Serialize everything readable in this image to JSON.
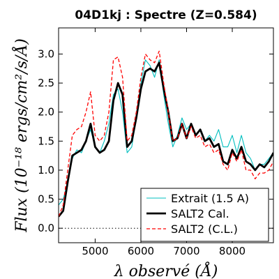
{
  "chart_data": {
    "type": "line",
    "title": "04D1kj : Spectre (Z=0.584)",
    "xlabel": "λ observé (Å)",
    "ylabel": "Flux (10⁻¹⁸ ergs/cm²/s/Å)",
    "xlim": [
      4200,
      8900
    ],
    "ylim": [
      -0.25,
      3.45
    ],
    "xticks": [
      5000,
      6000,
      7000,
      8000
    ],
    "yticks": [
      0.0,
      0.5,
      1.0,
      1.5,
      2.0,
      2.5,
      3.0
    ],
    "xtick_labels": [
      "5000",
      "6000",
      "7000",
      "8000"
    ],
    "ytick_labels": [
      "0.0",
      "0.5",
      "1.0",
      "1.5",
      "2.0",
      "2.5",
      "3.0"
    ],
    "legend_position": "lower-right",
    "series": [
      {
        "name": "Extrait (1.5 A)",
        "color": "#00bfbf",
        "style": "solid-thin",
        "x": [
          4200,
          4300,
          4400,
          4500,
          4600,
          4700,
          4800,
          4900,
          5000,
          5100,
          5200,
          5300,
          5400,
          5500,
          5600,
          5700,
          5800,
          5900,
          6000,
          6100,
          6200,
          6300,
          6400,
          6500,
          6600,
          6700,
          6800,
          6900,
          7000,
          7100,
          7200,
          7300,
          7400,
          7500,
          7600,
          7700,
          7800,
          7900,
          8000,
          8100,
          8200,
          8300,
          8400,
          8500,
          8600,
          8700,
          8800,
          8900
        ],
        "y": [
          0.4,
          0.5,
          0.8,
          1.2,
          1.35,
          1.3,
          1.5,
          1.7,
          1.4,
          1.3,
          1.5,
          1.8,
          2.3,
          2.4,
          2.0,
          1.3,
          1.4,
          1.9,
          2.5,
          2.9,
          2.8,
          2.6,
          2.9,
          2.3,
          1.8,
          1.4,
          1.6,
          1.9,
          1.7,
          1.8,
          1.6,
          1.7,
          1.5,
          1.6,
          1.5,
          1.7,
          1.4,
          1.4,
          1.6,
          1.3,
          1.6,
          1.3,
          1.2,
          1.0,
          1.1,
          1.1,
          1.2,
          1.3
        ]
      },
      {
        "name": "SALT2 Cal.",
        "color": "#000000",
        "style": "solid-thick",
        "x": [
          4200,
          4300,
          4400,
          4500,
          4600,
          4700,
          4800,
          4900,
          5000,
          5100,
          5200,
          5300,
          5400,
          5500,
          5600,
          5700,
          5800,
          5900,
          6000,
          6100,
          6200,
          6300,
          6400,
          6500,
          6600,
          6700,
          6800,
          6900,
          7000,
          7100,
          7200,
          7300,
          7400,
          7500,
          7600,
          7700,
          7800,
          7900,
          8000,
          8100,
          8200,
          8300,
          8400,
          8500,
          8600,
          8700,
          8800,
          8900
        ],
        "y": [
          0.2,
          0.3,
          0.8,
          1.25,
          1.3,
          1.35,
          1.5,
          1.8,
          1.4,
          1.3,
          1.35,
          1.5,
          2.2,
          2.5,
          2.3,
          1.4,
          1.5,
          1.9,
          2.4,
          2.7,
          2.75,
          2.7,
          2.85,
          2.4,
          2.0,
          1.5,
          1.55,
          1.8,
          1.55,
          1.8,
          1.6,
          1.7,
          1.5,
          1.55,
          1.4,
          1.45,
          1.15,
          1.1,
          1.35,
          1.2,
          1.4,
          1.15,
          1.1,
          1.0,
          1.1,
          1.05,
          1.15,
          1.3
        ]
      },
      {
        "name": "SALT2 (C.L.)",
        "color": "#ff0000",
        "style": "dashed",
        "x": [
          4200,
          4300,
          4400,
          4500,
          4600,
          4700,
          4800,
          4900,
          5000,
          5100,
          5200,
          5300,
          5400,
          5500,
          5600,
          5700,
          5800,
          5900,
          6000,
          6100,
          6200,
          6300,
          6400,
          6500,
          6600,
          6700,
          6800,
          6900,
          7000,
          7100,
          7200,
          7300,
          7400,
          7500,
          7600,
          7700,
          7800,
          7900,
          8000,
          8100,
          8200,
          8300,
          8400,
          8500,
          8600,
          8700,
          8800,
          8900
        ],
        "y": [
          0.2,
          0.4,
          1.0,
          1.6,
          1.7,
          1.75,
          2.0,
          2.35,
          1.6,
          1.5,
          1.6,
          2.0,
          2.9,
          2.95,
          2.6,
          1.5,
          1.6,
          2.0,
          2.6,
          3.0,
          2.9,
          2.85,
          3.05,
          2.5,
          2.0,
          1.5,
          1.55,
          1.8,
          1.55,
          1.75,
          1.55,
          1.6,
          1.4,
          1.45,
          1.3,
          1.35,
          1.1,
          1.0,
          1.3,
          1.15,
          1.35,
          1.0,
          1.0,
          0.85,
          0.95,
          0.95,
          1.0,
          1.15
        ]
      }
    ],
    "reference_line": {
      "y": 0.0,
      "style": "dotted",
      "color": "#000000"
    }
  }
}
